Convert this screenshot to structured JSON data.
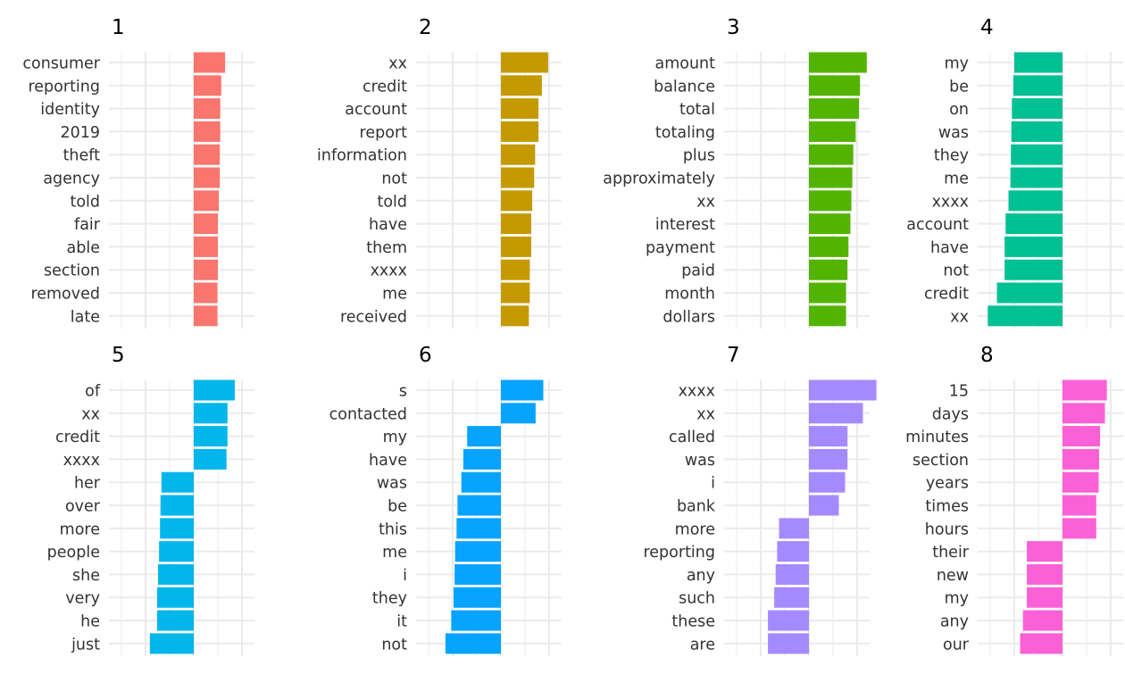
{
  "chart_data": {
    "type": "bar",
    "orientation": "horizontal",
    "faceted": true,
    "grid": true,
    "legend": "none",
    "panels": [
      {
        "title": "1",
        "color": "#F8766D",
        "words": [
          "consumer",
          "reporting",
          "identity",
          "2019",
          "theft",
          "agency",
          "told",
          "fair",
          "able",
          "section",
          "removed",
          "late"
        ],
        "values": [
          0.65,
          0.57,
          0.55,
          0.55,
          0.54,
          0.54,
          0.52,
          0.5,
          0.5,
          0.5,
          0.49,
          0.49
        ]
      },
      {
        "title": "2",
        "color": "#C49A00",
        "words": [
          "xx",
          "credit",
          "account",
          "report",
          "information",
          "not",
          "told",
          "have",
          "them",
          "xxxx",
          "me",
          "received"
        ],
        "values": [
          0.98,
          0.85,
          0.78,
          0.78,
          0.71,
          0.69,
          0.65,
          0.63,
          0.63,
          0.6,
          0.6,
          0.58
        ]
      },
      {
        "title": "3",
        "color": "#53B400",
        "words": [
          "amount",
          "balance",
          "total",
          "totaling",
          "plus",
          "approximately",
          "xx",
          "interest",
          "payment",
          "paid",
          "month",
          "dollars"
        ],
        "values": [
          1.2,
          1.06,
          1.04,
          0.97,
          0.92,
          0.9,
          0.88,
          0.86,
          0.82,
          0.8,
          0.77,
          0.77
        ]
      },
      {
        "title": "4",
        "color": "#00C094",
        "words": [
          "my",
          "be",
          "on",
          "was",
          "they",
          "me",
          "xxxx",
          "account",
          "have",
          "not",
          "credit",
          "xx"
        ],
        "values": [
          -1.0,
          -1.02,
          -1.05,
          -1.06,
          -1.07,
          -1.08,
          -1.12,
          -1.18,
          -1.2,
          -1.2,
          -1.36,
          -1.55
        ]
      },
      {
        "title": "5",
        "color": "#00B6EB",
        "words": [
          "of",
          "xx",
          "credit",
          "xxxx",
          "her",
          "over",
          "more",
          "people",
          "she",
          "very",
          "he",
          "just"
        ],
        "values": [
          0.85,
          0.7,
          0.7,
          0.68,
          -0.67,
          -0.69,
          -0.7,
          -0.72,
          -0.74,
          -0.76,
          -0.76,
          -0.91
        ]
      },
      {
        "title": "6",
        "color": "#06A4FF",
        "words": [
          "s",
          "contacted",
          "my",
          "have",
          "was",
          "be",
          "this",
          "me",
          "i",
          "they",
          "it",
          "not"
        ],
        "values": [
          0.88,
          0.72,
          -0.7,
          -0.78,
          -0.82,
          -0.9,
          -0.92,
          -0.95,
          -0.96,
          -0.98,
          -1.03,
          -1.15
        ]
      },
      {
        "title": "7",
        "color": "#A58AFF",
        "words": [
          "xxxx",
          "xx",
          "called",
          "was",
          "i",
          "bank",
          "more",
          "reporting",
          "any",
          "such",
          "these",
          "are"
        ],
        "values": [
          1.4,
          1.12,
          0.8,
          0.8,
          0.75,
          0.62,
          -0.62,
          -0.66,
          -0.69,
          -0.72,
          -0.85,
          -0.85
        ]
      },
      {
        "title": "8",
        "color": "#FB61D7",
        "words": [
          "15",
          "days",
          "minutes",
          "section",
          "years",
          "times",
          "hours",
          "their",
          "new",
          "my",
          "any",
          "our"
        ],
        "values": [
          0.92,
          0.88,
          0.78,
          0.76,
          0.75,
          0.7,
          0.7,
          -0.74,
          -0.74,
          -0.74,
          -0.82,
          -0.88
        ]
      }
    ]
  }
}
